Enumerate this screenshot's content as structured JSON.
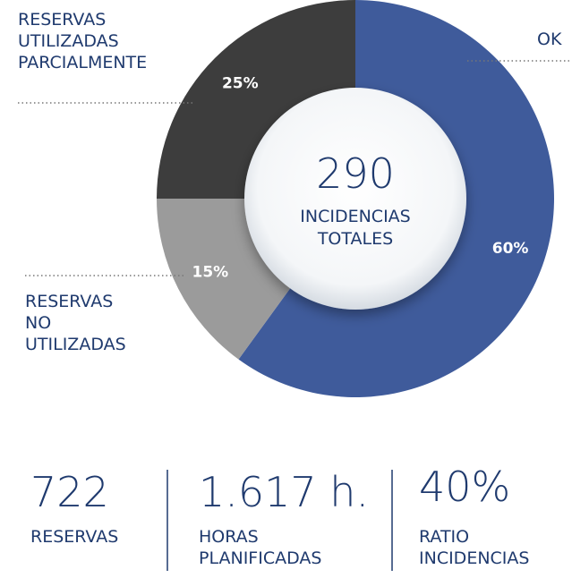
{
  "chart_data": {
    "type": "pie",
    "categories": [
      "OK",
      "RESERVAS NO UTILIZADAS",
      "RESERVAS UTILIZADAS PARCIALMENTE"
    ],
    "values": [
      60,
      15,
      25
    ],
    "value_labels": [
      "60%",
      "15%",
      "25%"
    ],
    "colors": [
      "#3f5b9b",
      "#9b9b9b",
      "#3d3d3d"
    ],
    "center_value": "290",
    "center_label": "INCIDENCIAS TOTALES"
  },
  "stats": [
    {
      "value": "722",
      "label": "RESERVAS"
    },
    {
      "value": "1.617 h.",
      "label": "HORAS PLANIFICADAS"
    },
    {
      "value": "40%",
      "label": "RATIO INCIDENCIAS"
    }
  ]
}
